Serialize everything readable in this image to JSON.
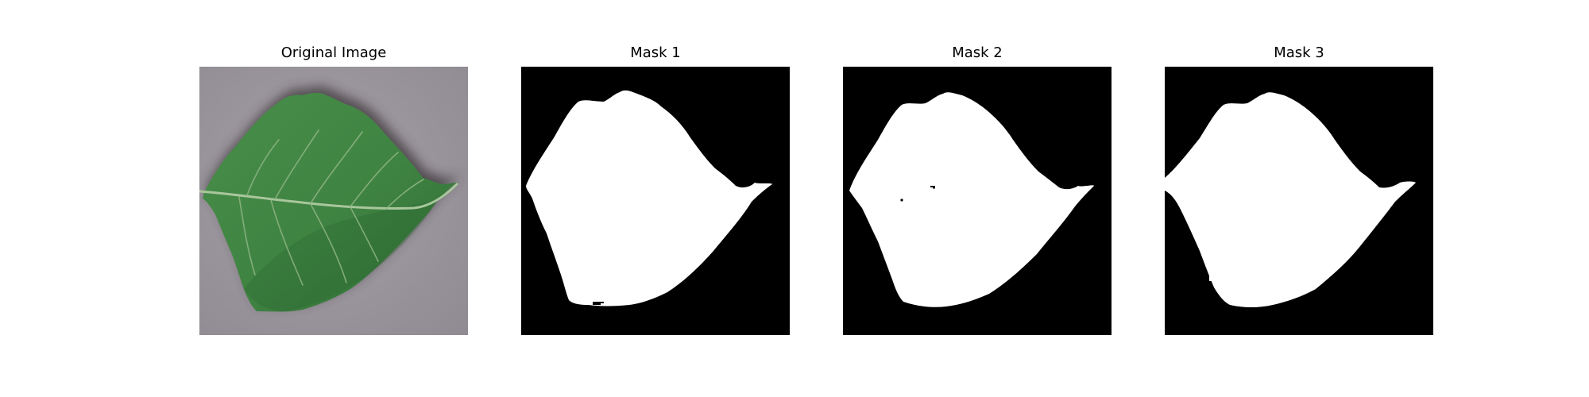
{
  "figure": {
    "panels": [
      {
        "title": "Original Image",
        "kind": "photo"
      },
      {
        "title": "Mask 1",
        "kind": "mask"
      },
      {
        "title": "Mask 2",
        "kind": "mask"
      },
      {
        "title": "Mask 3",
        "kind": "mask"
      }
    ],
    "colors": {
      "background": "#ffffff",
      "mask_background": "#000000",
      "mask_foreground": "#ffffff",
      "photo_surface": "#9f9aa0",
      "leaf": "#3f8342",
      "leaf_dark": "#2d6a31",
      "leaf_vein": "#a8c59a"
    }
  }
}
